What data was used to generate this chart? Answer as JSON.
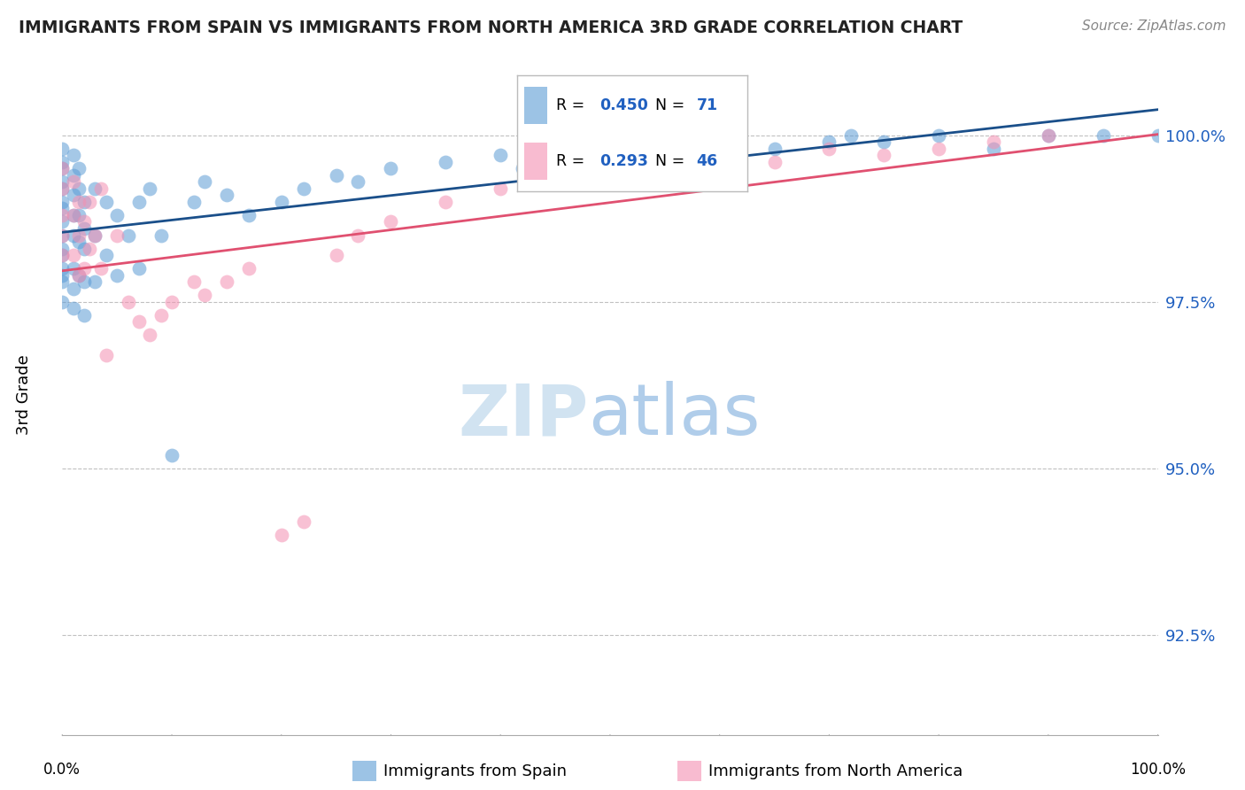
{
  "title": "IMMIGRANTS FROM SPAIN VS IMMIGRANTS FROM NORTH AMERICA 3RD GRADE CORRELATION CHART",
  "source_text": "Source: ZipAtlas.com",
  "ylabel": "3rd Grade",
  "y_ticks": [
    92.5,
    95.0,
    97.5,
    100.0
  ],
  "y_tick_labels": [
    "92.5%",
    "95.0%",
    "97.5%",
    "100.0%"
  ],
  "xlim": [
    0.0,
    1.0
  ],
  "ylim": [
    91.0,
    101.2
  ],
  "legend_label_1": "Immigrants from Spain",
  "legend_label_2": "Immigrants from North America",
  "R1": 0.45,
  "N1": 71,
  "R2": 0.293,
  "N2": 46,
  "color_blue": "#5b9bd5",
  "color_pink": "#f48fb1",
  "color_blue_line": "#1a4f8a",
  "color_pink_line": "#e05070",
  "color_blue_text": "#2060c0",
  "blue_points_x": [
    0.0,
    0.0,
    0.0,
    0.0,
    0.0,
    0.0,
    0.0,
    0.0,
    0.0,
    0.0,
    0.0,
    0.0,
    0.0,
    0.0,
    0.0,
    0.01,
    0.01,
    0.01,
    0.01,
    0.01,
    0.01,
    0.01,
    0.01,
    0.015,
    0.015,
    0.015,
    0.015,
    0.015,
    0.02,
    0.02,
    0.02,
    0.02,
    0.02,
    0.03,
    0.03,
    0.03,
    0.04,
    0.04,
    0.05,
    0.05,
    0.06,
    0.07,
    0.07,
    0.08,
    0.09,
    0.1,
    0.12,
    0.13,
    0.15,
    0.17,
    0.2,
    0.22,
    0.25,
    0.27,
    0.3,
    0.35,
    0.4,
    0.42,
    0.45,
    0.5,
    0.55,
    0.6,
    0.65,
    0.7,
    0.72,
    0.75,
    0.8,
    0.85,
    0.9,
    0.95,
    1.0
  ],
  "blue_points_y": [
    99.8,
    99.6,
    99.5,
    99.3,
    99.2,
    99.0,
    98.9,
    98.7,
    98.5,
    98.3,
    98.2,
    98.0,
    97.9,
    97.8,
    97.5,
    99.7,
    99.4,
    99.1,
    98.8,
    98.5,
    98.0,
    97.7,
    97.4,
    99.5,
    99.2,
    98.8,
    98.4,
    97.9,
    99.0,
    98.6,
    98.3,
    97.8,
    97.3,
    99.2,
    98.5,
    97.8,
    99.0,
    98.2,
    98.8,
    97.9,
    98.5,
    99.0,
    98.0,
    99.2,
    98.5,
    95.2,
    99.0,
    99.3,
    99.1,
    98.8,
    99.0,
    99.2,
    99.4,
    99.3,
    99.5,
    99.6,
    99.7,
    99.5,
    99.6,
    99.8,
    99.7,
    99.9,
    99.8,
    99.9,
    100.0,
    99.9,
    100.0,
    99.8,
    100.0,
    100.0,
    100.0
  ],
  "pink_points_x": [
    0.0,
    0.0,
    0.0,
    0.0,
    0.0,
    0.01,
    0.01,
    0.01,
    0.015,
    0.015,
    0.015,
    0.02,
    0.02,
    0.025,
    0.025,
    0.03,
    0.035,
    0.035,
    0.04,
    0.05,
    0.06,
    0.07,
    0.08,
    0.09,
    0.1,
    0.12,
    0.13,
    0.15,
    0.17,
    0.2,
    0.22,
    0.25,
    0.27,
    0.3,
    0.35,
    0.4,
    0.45,
    0.5,
    0.55,
    0.6,
    0.65,
    0.7,
    0.75,
    0.8,
    0.85,
    0.9
  ],
  "pink_points_y": [
    99.5,
    99.2,
    98.8,
    98.5,
    98.2,
    99.3,
    98.8,
    98.2,
    99.0,
    98.5,
    97.9,
    98.7,
    98.0,
    99.0,
    98.3,
    98.5,
    99.2,
    98.0,
    96.7,
    98.5,
    97.5,
    97.2,
    97.0,
    97.3,
    97.5,
    97.8,
    97.6,
    97.8,
    98.0,
    94.0,
    94.2,
    98.2,
    98.5,
    98.7,
    99.0,
    99.2,
    99.3,
    99.4,
    99.5,
    99.7,
    99.6,
    99.8,
    99.7,
    99.8,
    99.9,
    100.0
  ]
}
